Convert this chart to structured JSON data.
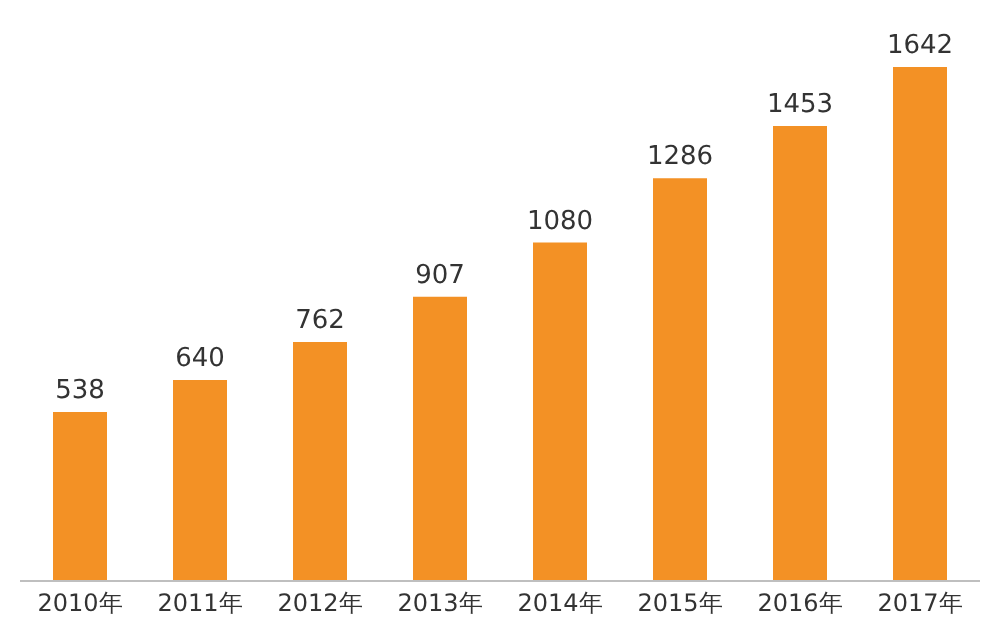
{
  "chart_data": {
    "type": "bar",
    "categories": [
      "2010年",
      "2011年",
      "2012年",
      "2013年",
      "2014年",
      "2015年",
      "2016年",
      "2017年"
    ],
    "values": [
      538,
      640,
      762,
      907,
      1080,
      1286,
      1453,
      1642
    ],
    "color": "#f39125",
    "data_labels": true,
    "legend": false
  }
}
